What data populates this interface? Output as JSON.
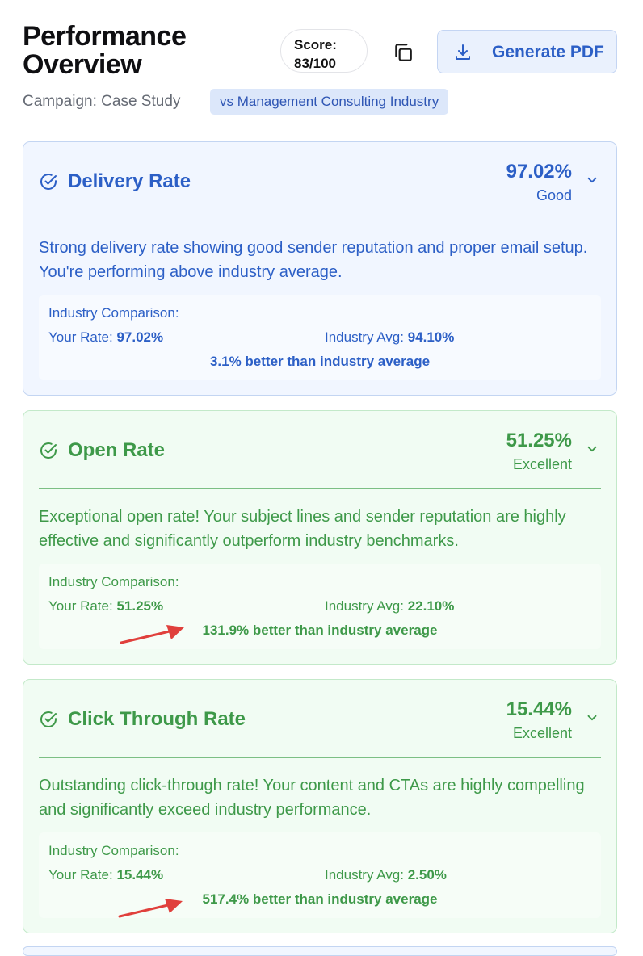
{
  "header": {
    "title": "Performance Overview",
    "score_label": "Score:",
    "score_value": "83/100",
    "copy_icon": "copy-icon",
    "generate_pdf_label": "Generate PDF",
    "download_icon": "download-icon",
    "campaign": "Campaign: Case Study",
    "industry_badge": "vs Management Consulting Industry"
  },
  "colors": {
    "blue_accent": "#2c5fc6",
    "green_accent": "#3e9949",
    "annotation_arrow": "#e0403c"
  },
  "metrics": [
    {
      "name": "Delivery Rate",
      "value": "97.02%",
      "level": "Good",
      "description": "Strong delivery rate showing good sender reputation and proper email setup. You're performing above industry average.",
      "comparison_title": "Industry Comparison:",
      "your_rate_label": "Your Rate:",
      "your_rate": "97.02%",
      "industry_avg_label": "Industry Avg:",
      "industry_avg": "94.10%",
      "difference": "3.1% better than industry average"
    },
    {
      "name": "Open Rate",
      "value": "51.25%",
      "level": "Excellent",
      "description": "Exceptional open rate! Your subject lines and sender reputation are highly effective and significantly outperform industry benchmarks.",
      "comparison_title": "Industry Comparison:",
      "your_rate_label": "Your Rate:",
      "your_rate": "51.25%",
      "industry_avg_label": "Industry Avg:",
      "industry_avg": "22.10%",
      "difference": "131.9% better than industry average"
    },
    {
      "name": "Click Through Rate",
      "value": "15.44%",
      "level": "Excellent",
      "description": "Outstanding click-through rate! Your content and CTAs are highly compelling and significantly exceed industry performance.",
      "comparison_title": "Industry Comparison:",
      "your_rate_label": "Your Rate:",
      "your_rate": "15.44%",
      "industry_avg_label": "Industry Avg:",
      "industry_avg": "2.50%",
      "difference": "517.4% better than industry average"
    }
  ]
}
